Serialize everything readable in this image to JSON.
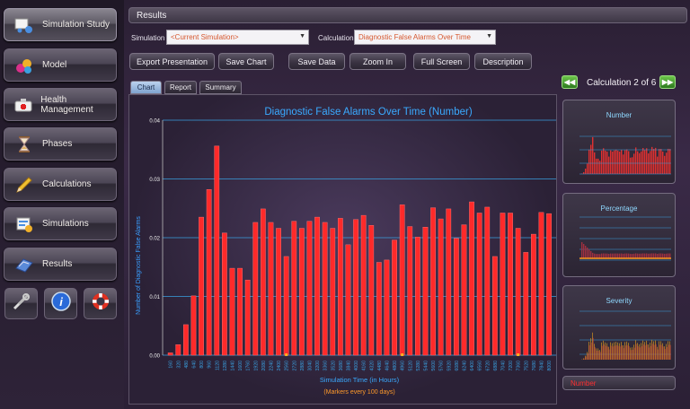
{
  "sidebar": {
    "items": [
      {
        "label": "Simulation Study",
        "icon": "simulation-study-icon"
      },
      {
        "label": "Model",
        "icon": "model-icon"
      },
      {
        "label": "Health Management",
        "icon": "health-management-icon"
      },
      {
        "label": "Phases",
        "icon": "hourglass-icon"
      },
      {
        "label": "Calculations",
        "icon": "pencil-icon"
      },
      {
        "label": "Simulations",
        "icon": "simulations-icon"
      },
      {
        "label": "Results",
        "icon": "results-icon"
      }
    ],
    "tools": [
      {
        "icon": "tools-icon"
      },
      {
        "icon": "info-icon"
      },
      {
        "icon": "help-lifebuoy-icon"
      }
    ]
  },
  "header": {
    "title": "Results"
  },
  "simulation": {
    "label": "Simulation",
    "value": "<Current Simulation>"
  },
  "calculation": {
    "label": "Calculation",
    "value": "Diagnostic False Alarms Over Time"
  },
  "toolbar": {
    "export": "Export Presentation",
    "save_chart": "Save Chart",
    "save_data": "Save Data",
    "zoom_in": "Zoom In",
    "full_screen": "Full Screen",
    "description": "Description"
  },
  "tabs": [
    "Chart",
    "Report",
    "Summary"
  ],
  "pager": {
    "prev": "◀◀",
    "next": "▶▶",
    "label": "Calculation 2 of 6"
  },
  "thumbnails": [
    {
      "title": "Number"
    },
    {
      "title": "Percentage"
    },
    {
      "title": "Severity"
    }
  ],
  "thumb_footer": "Number",
  "colors": {
    "bar": "#ff2a2a",
    "grid": "#3aa0e0",
    "title": "#3aaaff",
    "axis_label": "#3a9fff",
    "subtitle": "#ff9a2a"
  },
  "chart_data": {
    "type": "bar",
    "title": "Diagnostic False Alarms Over Time (Number)",
    "xlabel": "Simulation Time (in Hours)",
    "xsublabel": "(Markers every 100 days)",
    "ylabel": "Number of Diagnostic False Alarms",
    "ylim": [
      0,
      0.04
    ],
    "yticks": [
      "0.00",
      "0.01",
      "0.02",
      "0.03",
      "0.04"
    ],
    "grid": true,
    "categories": [
      "160",
      "320",
      "480",
      "640",
      "800",
      "960",
      "1120",
      "1280",
      "1440",
      "1600",
      "1760",
      "1920",
      "2080",
      "2240",
      "2400",
      "2560",
      "2720",
      "2880",
      "3040",
      "3200",
      "3360",
      "3520",
      "3680",
      "3840",
      "4000",
      "4160",
      "4320",
      "4480",
      "4640",
      "4800",
      "4960",
      "5120",
      "5280",
      "5440",
      "5600",
      "5760",
      "5920",
      "6080",
      "6240",
      "6400",
      "6560",
      "6720",
      "6880",
      "7040",
      "7200",
      "7360",
      "7520",
      "7680",
      "7840",
      "8000"
    ],
    "values": [
      0.0004,
      0.0018,
      0.0052,
      0.0101,
      0.0235,
      0.0282,
      0.0356,
      0.0208,
      0.0148,
      0.0148,
      0.0128,
      0.0226,
      0.0249,
      0.0226,
      0.0216,
      0.0168,
      0.0228,
      0.0216,
      0.0228,
      0.0235,
      0.0226,
      0.0216,
      0.0233,
      0.0188,
      0.0231,
      0.0238,
      0.0221,
      0.0158,
      0.0162,
      0.0196,
      0.0256,
      0.0219,
      0.0201,
      0.0218,
      0.0251,
      0.0232,
      0.0249,
      0.0199,
      0.0222,
      0.0261,
      0.0242,
      0.0252,
      0.0168,
      0.0242,
      0.0242,
      0.0216,
      0.0175,
      0.0206,
      0.0243,
      0.0241
    ]
  }
}
